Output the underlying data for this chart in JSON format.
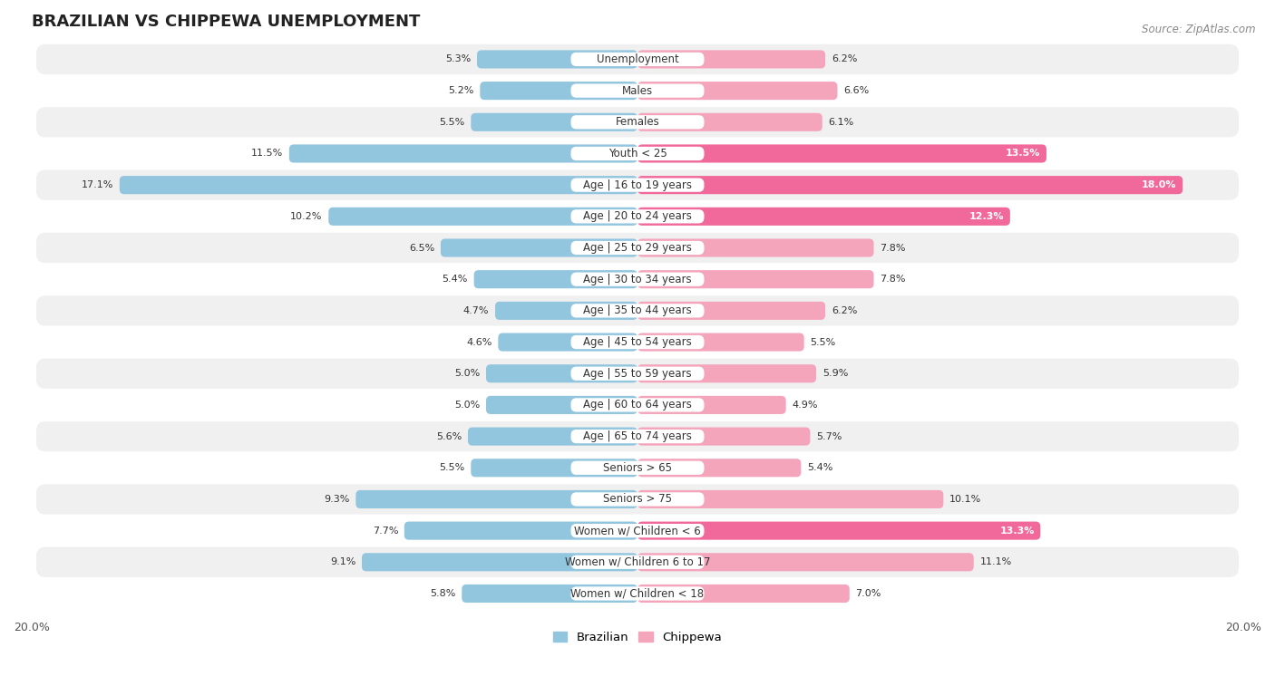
{
  "title": "BRAZILIAN VS CHIPPEWA UNEMPLOYMENT",
  "source": "Source: ZipAtlas.com",
  "categories": [
    "Unemployment",
    "Males",
    "Females",
    "Youth < 25",
    "Age | 16 to 19 years",
    "Age | 20 to 24 years",
    "Age | 25 to 29 years",
    "Age | 30 to 34 years",
    "Age | 35 to 44 years",
    "Age | 45 to 54 years",
    "Age | 55 to 59 years",
    "Age | 60 to 64 years",
    "Age | 65 to 74 years",
    "Seniors > 65",
    "Seniors > 75",
    "Women w/ Children < 6",
    "Women w/ Children 6 to 17",
    "Women w/ Children < 18"
  ],
  "brazilian": [
    5.3,
    5.2,
    5.5,
    11.5,
    17.1,
    10.2,
    6.5,
    5.4,
    4.7,
    4.6,
    5.0,
    5.0,
    5.6,
    5.5,
    9.3,
    7.7,
    9.1,
    5.8
  ],
  "chippewa": [
    6.2,
    6.6,
    6.1,
    13.5,
    18.0,
    12.3,
    7.8,
    7.8,
    6.2,
    5.5,
    5.9,
    4.9,
    5.7,
    5.4,
    10.1,
    13.3,
    11.1,
    7.0
  ],
  "brazilian_color": "#92c5de",
  "chippewa_color_normal": "#f4a5bc",
  "chippewa_color_bright": "#f0699a",
  "chippewa_bright_indices": [
    3,
    4,
    5,
    15
  ],
  "bar_height": 0.58,
  "xlim": 20.0,
  "bg_color": "#ffffff",
  "row_bg_even": "#f0f0f0",
  "row_bg_odd": "#ffffff",
  "title_fontsize": 13,
  "label_fontsize": 8.5,
  "value_fontsize": 8.0,
  "legend_fontsize": 9.5
}
